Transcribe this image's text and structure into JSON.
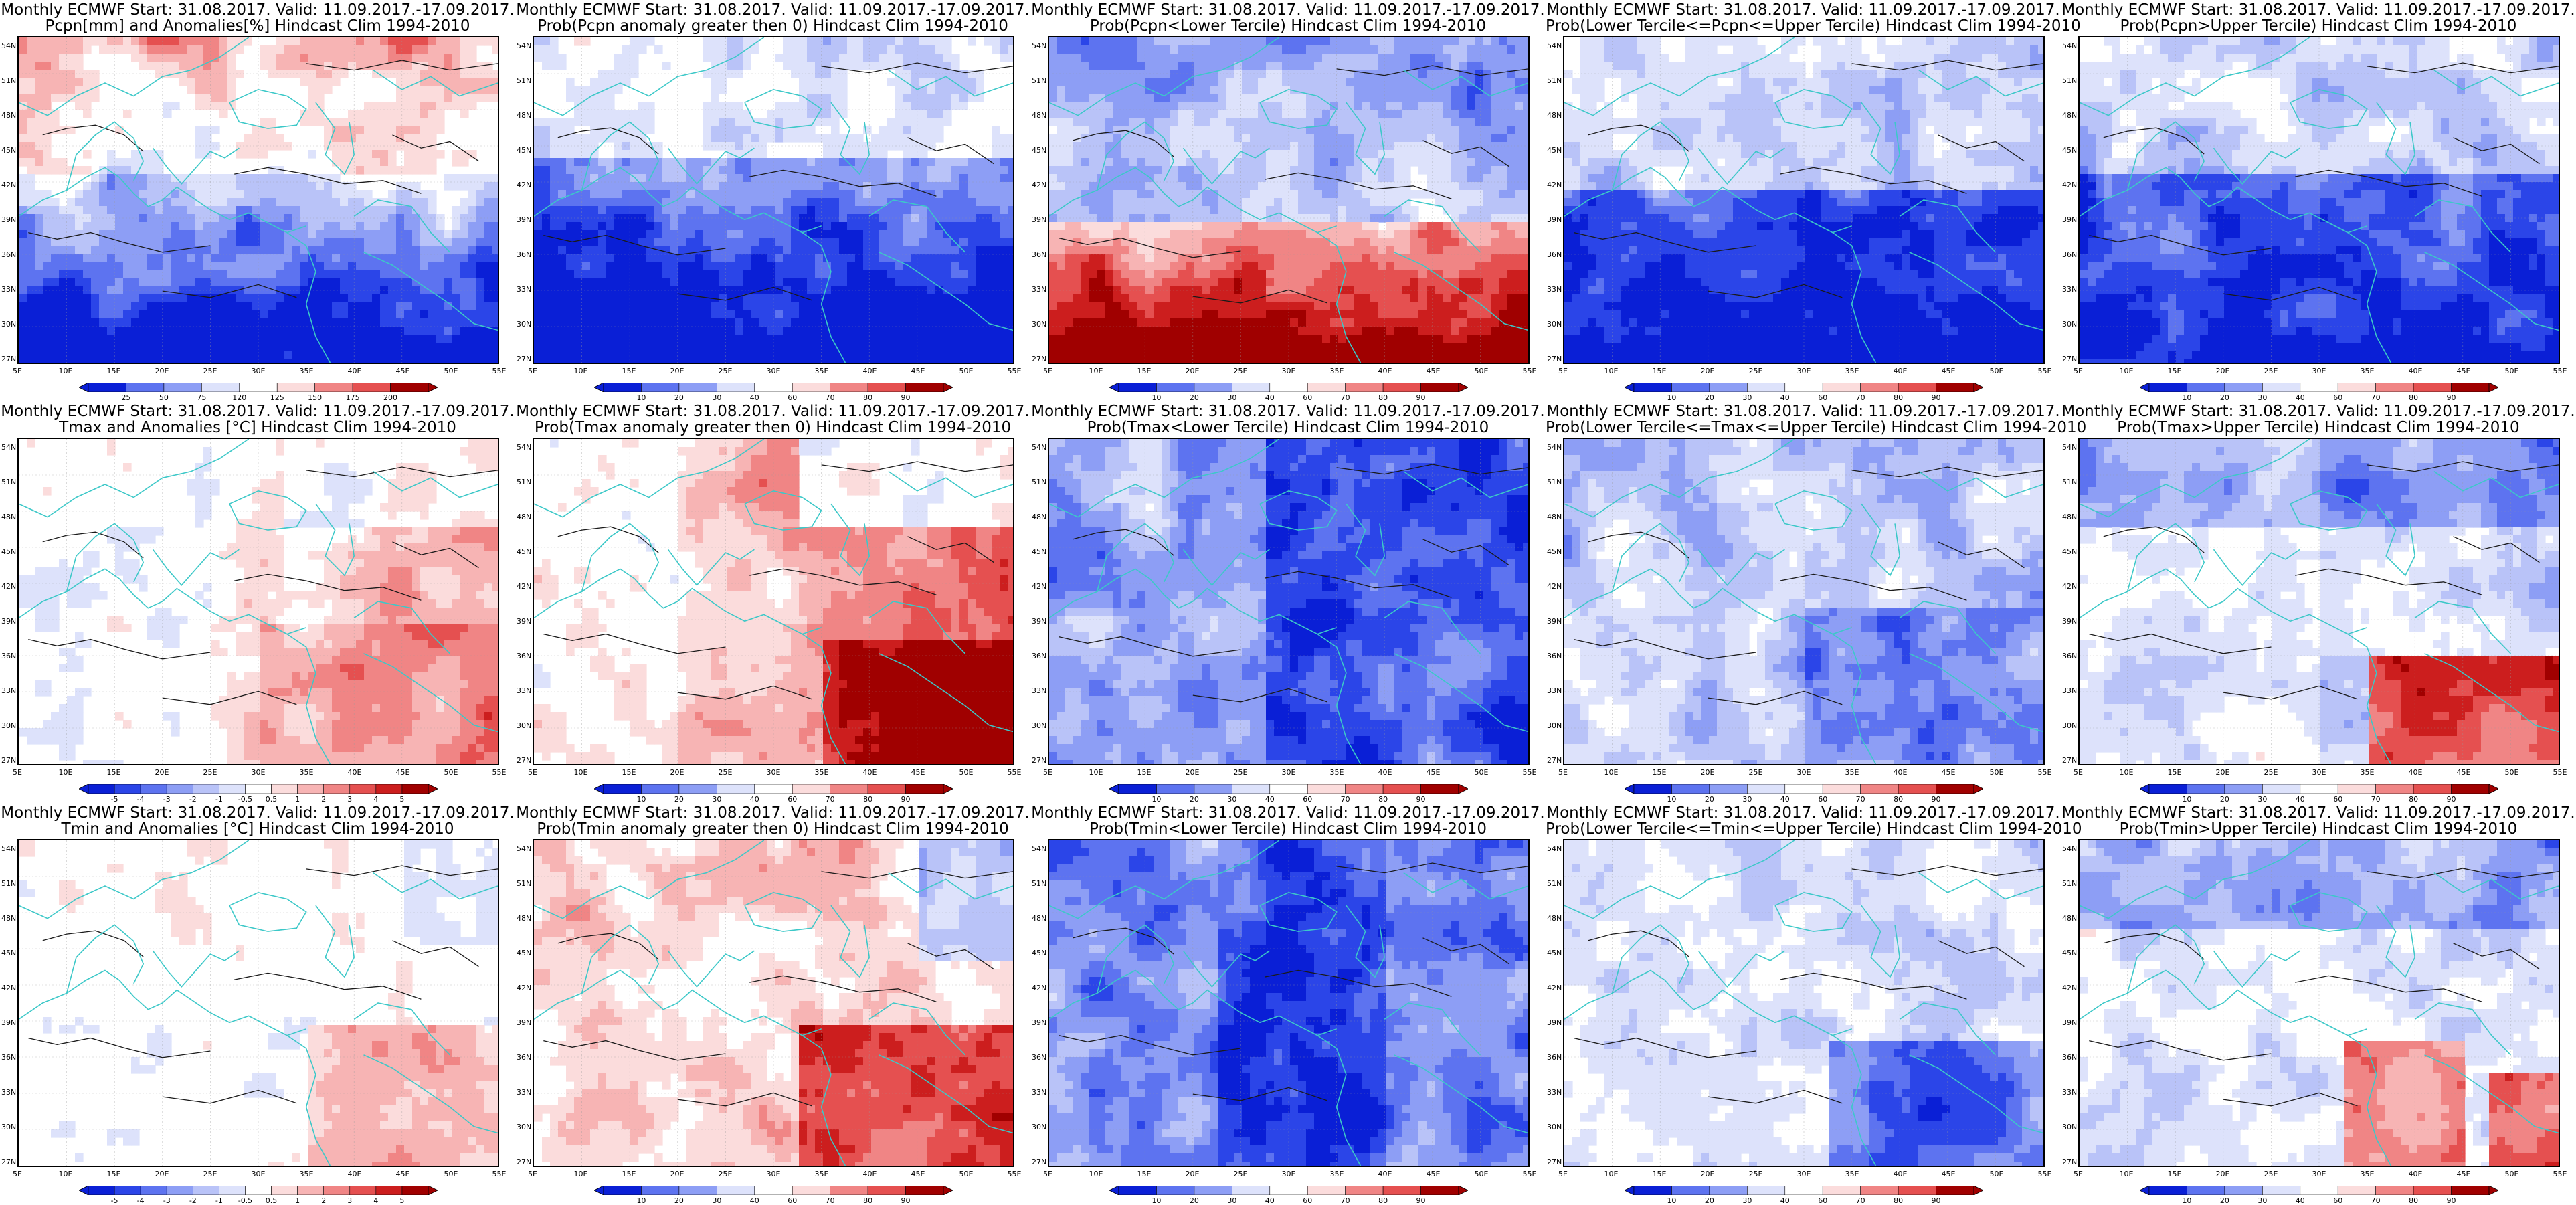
{
  "lat_ticks": [
    "54N",
    "51N",
    "48N",
    "45N",
    "42N",
    "39N",
    "36N",
    "33N",
    "30N",
    "27N"
  ],
  "lon_ticks": [
    "5E",
    "10E",
    "15E",
    "20E",
    "25E",
    "30E",
    "35E",
    "40E",
    "45E",
    "50E",
    "55E"
  ],
  "scale_anom_pcpn": [
    "25",
    "50",
    "75",
    "120",
    "125",
    "150",
    "175",
    "200"
  ],
  "scale_anom_temp": [
    "-5",
    "-4",
    "-3",
    "-2",
    "-1",
    "-0.5",
    "0.5",
    "1",
    "2",
    "3",
    "4",
    "5"
  ],
  "scale_prob": [
    "10",
    "20",
    "30",
    "40",
    "60",
    "70",
    "80",
    "90"
  ],
  "colors": {
    "coast": "#3cc8c8",
    "contour": "#1a1a1a",
    "blue_dark": "#0a1fd6",
    "red_dark": "#b00000",
    "white": "#ffffff"
  },
  "panels": [
    {
      "id": "pcpn-anom",
      "title1": "Monthly ECMWF Start: 31.08.2017. Valid: 11.09.2017.-17.09.2017.",
      "title2": "Pcpn[mm] and Anomalies[%] Hindcast Clim 1994-2010",
      "scale": "scale_anom_pcpn",
      "field": "pcpn_anom"
    },
    {
      "id": "pcpn-prob-gt0",
      "title1": "Monthly ECMWF Start: 31.08.2017. Valid: 11.09.2017.-17.09.2017.",
      "title2": "Prob(Pcpn anomaly greater then 0) Hindcast Clim 1994-2010",
      "scale": "scale_prob",
      "field": "pcpn_gt0"
    },
    {
      "id": "pcpn-prob-lower",
      "title1": "Monthly ECMWF Start: 31.08.2017. Valid: 11.09.2017.-17.09.2017.",
      "title2": "Prob(Pcpn<Lower Tercile) Hindcast Clim 1994-2010",
      "scale": "scale_prob",
      "field": "pcpn_lower"
    },
    {
      "id": "pcpn-prob-middle",
      "title1": "Monthly ECMWF Start: 31.08.2017. Valid: 11.09.2017.-17.09.2017.",
      "title2": "Prob(Lower Tercile<=Pcpn<=Upper Tercile) Hindcast Clim 1994-2010",
      "scale": "scale_prob",
      "field": "pcpn_middle"
    },
    {
      "id": "pcpn-prob-upper",
      "title1": "Monthly ECMWF Start: 31.08.2017. Valid: 11.09.2017.-17.09.2017.",
      "title2": "Prob(Pcpn>Upper Tercile) Hindcast Clim 1994-2010",
      "scale": "scale_prob",
      "field": "pcpn_upper"
    },
    {
      "id": "tmax-anom",
      "title1": "Monthly ECMWF Start: 31.08.2017. Valid: 11.09.2017.-17.09.2017.",
      "title2": "Tmax and Anomalies [°C] Hindcast Clim 1994-2010",
      "scale": "scale_anom_temp",
      "field": "tmax_anom"
    },
    {
      "id": "tmax-prob-gt0",
      "title1": "Monthly ECMWF Start: 31.08.2017. Valid: 11.09.2017.-17.09.2017.",
      "title2": "Prob(Tmax anomaly greater then 0) Hindcast Clim 1994-2010",
      "scale": "scale_prob",
      "field": "tmax_gt0"
    },
    {
      "id": "tmax-prob-lower",
      "title1": "Monthly ECMWF Start: 31.08.2017. Valid: 11.09.2017.-17.09.2017.",
      "title2": "Prob(Tmax<Lower Tercile) Hindcast Clim 1994-2010",
      "scale": "scale_prob",
      "field": "tmax_lower"
    },
    {
      "id": "tmax-prob-middle",
      "title1": "Monthly ECMWF Start: 31.08.2017. Valid: 11.09.2017.-17.09.2017.",
      "title2": "Prob(Lower Tercile<=Tmax<=Upper Tercile) Hindcast Clim 1994-2010",
      "scale": "scale_prob",
      "field": "tmax_middle"
    },
    {
      "id": "tmax-prob-upper",
      "title1": "Monthly ECMWF Start: 31.08.2017. Valid: 11.09.2017.-17.09.2017.",
      "title2": "Prob(Tmax>Upper Tercile) Hindcast Clim 1994-2010",
      "scale": "scale_prob",
      "field": "tmax_upper"
    },
    {
      "id": "tmin-anom",
      "title1": "Monthly ECMWF Start: 31.08.2017. Valid: 11.09.2017.-17.09.2017.",
      "title2": "Tmin and Anomalies [°C] Hindcast Clim 1994-2010",
      "scale": "scale_anom_temp",
      "field": "tmin_anom"
    },
    {
      "id": "tmin-prob-gt0",
      "title1": "Monthly ECMWF Start: 31.08.2017. Valid: 11.09.2017.-17.09.2017.",
      "title2": "Prob(Tmin anomaly greater then 0) Hindcast Clim 1994-2010",
      "scale": "scale_prob",
      "field": "tmin_gt0"
    },
    {
      "id": "tmin-prob-lower",
      "title1": "Monthly ECMWF Start: 31.08.2017. Valid: 11.09.2017.-17.09.2017.",
      "title2": "Prob(Tmin<Lower Tercile) Hindcast Clim 1994-2010",
      "scale": "scale_prob",
      "field": "tmin_lower"
    },
    {
      "id": "tmin-prob-middle",
      "title1": "Monthly ECMWF Start: 31.08.2017. Valid: 11.09.2017.-17.09.2017.",
      "title2": "Prob(Lower Tercile<=Tmin<=Upper Tercile) Hindcast Clim 1994-2010",
      "scale": "scale_prob",
      "field": "tmin_middle"
    },
    {
      "id": "tmin-prob-upper",
      "title1": "Monthly ECMWF Start: 31.08.2017. Valid: 11.09.2017.-17.09.2017.",
      "title2": "Prob(Tmin>Upper Tercile) Hindcast Clim 1994-2010",
      "scale": "scale_prob",
      "field": "tmin_upper"
    }
  ]
}
